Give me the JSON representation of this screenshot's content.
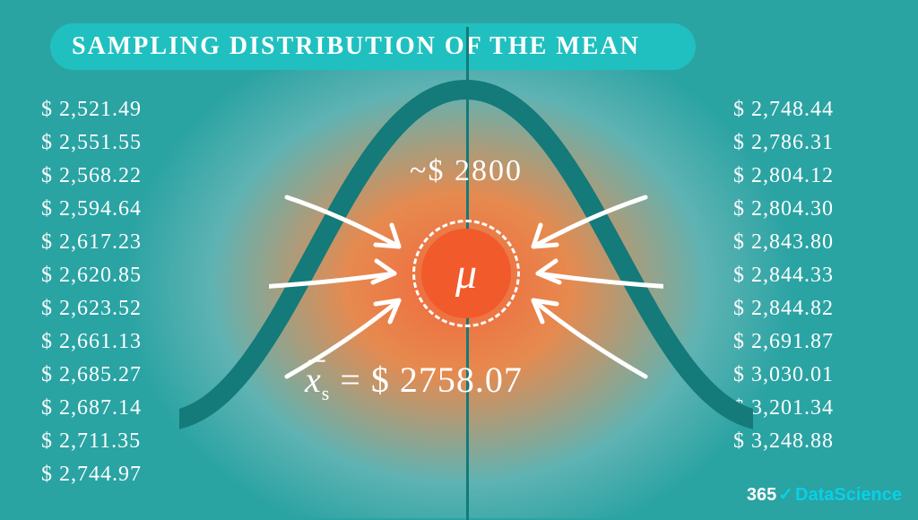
{
  "title": "SAMPLING DISTRIBUTION OF THE MEAN",
  "approx_label": "~$ 2800",
  "mu_symbol": "μ",
  "sample_mean_prefix": "x̄",
  "sample_mean_sub": "s",
  "sample_mean_value": "= $ 2758.07",
  "left_values": [
    "$ 2,521.49",
    "$ 2,551.55",
    "$ 2,568.22",
    "$ 2,594.64",
    "$ 2,617.23",
    "$ 2,620.85",
    "$ 2,623.52",
    "$ 2,661.13",
    "$ 2,685.27",
    "$ 2,687.14",
    "$ 2,711.35",
    "$ 2,744.97"
  ],
  "right_values": [
    "$ 2,748.44",
    "$ 2,786.31",
    "$ 2,804.12",
    "$ 2,804.30",
    "$ 2,843.80",
    "$ 2,844.33",
    "$ 2,844.82",
    "$ 2,691.87",
    "$ 3,030.01",
    "$ 3,201.34",
    "$ 3,248.88"
  ],
  "brand_365": "365",
  "brand_check": "✓",
  "brand_ds": "DataScience",
  "colors": {
    "bg_teal": "#2aa3a3",
    "bg_orange": "#f2663a",
    "pill": "#20c0c0",
    "mu_circle": "#f15a2b",
    "curve": "#147a7a",
    "text": "#ffffff",
    "brand_accent": "#08d0e8"
  },
  "chart": {
    "type": "infographic",
    "bell_curve": {
      "stroke": "#147a7a",
      "stroke_width": 22
    },
    "arrows": {
      "stroke": "#ffffff",
      "stroke_width": 5
    },
    "dashed_ring": {
      "stroke": "#ffffff",
      "dash": "6 6"
    }
  }
}
